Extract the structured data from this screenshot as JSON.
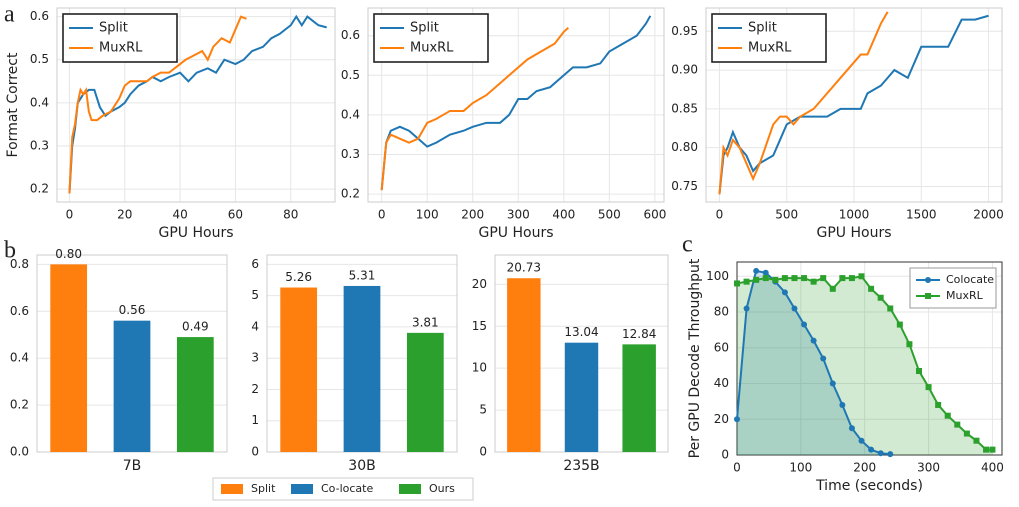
{
  "panel_labels": [
    "a",
    "b",
    "c"
  ],
  "legend": {
    "items": [
      {
        "name": "Split",
        "color": "#ff7f0e"
      },
      {
        "name": "Co-locate",
        "color": "#1f77b4"
      },
      {
        "name": "Ours",
        "color": "#2ca02c"
      }
    ]
  },
  "chart_data": [
    {
      "type": "line",
      "xlabel": "GPU Hours",
      "ylabel": "Format Correct",
      "xlim": [
        -4.5,
        96
      ],
      "ylim": [
        0.17,
        0.62
      ],
      "xticks": [
        0,
        20,
        40,
        60,
        80
      ],
      "yticks": [
        0.2,
        0.3,
        0.4,
        0.5,
        0.6
      ],
      "grid": true,
      "legend": "upper left",
      "series": [
        {
          "name": "Split",
          "color": "#1f77b4",
          "x": [
            0,
            1,
            2,
            3,
            5,
            7,
            9,
            11,
            13,
            15,
            18,
            20,
            22,
            25,
            28,
            30,
            33,
            36,
            40,
            43,
            46,
            50,
            53,
            56,
            60,
            63,
            66,
            70,
            73,
            76,
            80,
            82,
            84,
            86,
            88,
            90,
            93
          ],
          "values": [
            0.19,
            0.3,
            0.34,
            0.4,
            0.42,
            0.43,
            0.43,
            0.39,
            0.37,
            0.38,
            0.39,
            0.4,
            0.42,
            0.44,
            0.45,
            0.46,
            0.45,
            0.46,
            0.47,
            0.45,
            0.47,
            0.48,
            0.47,
            0.5,
            0.49,
            0.5,
            0.52,
            0.53,
            0.55,
            0.56,
            0.58,
            0.6,
            0.58,
            0.6,
            0.59,
            0.58,
            0.575
          ]
        },
        {
          "name": "MuxRL",
          "color": "#ff7f0e",
          "x": [
            0,
            1,
            2,
            3,
            4,
            5,
            6,
            7,
            8,
            10,
            12,
            15,
            18,
            20,
            22,
            25,
            28,
            30,
            33,
            36,
            40,
            42,
            45,
            48,
            50,
            52,
            55,
            58,
            60,
            62,
            64
          ],
          "values": [
            0.19,
            0.32,
            0.35,
            0.4,
            0.43,
            0.42,
            0.43,
            0.38,
            0.36,
            0.36,
            0.37,
            0.38,
            0.41,
            0.44,
            0.45,
            0.45,
            0.45,
            0.46,
            0.47,
            0.47,
            0.49,
            0.5,
            0.51,
            0.52,
            0.5,
            0.53,
            0.55,
            0.54,
            0.57,
            0.6,
            0.595
          ]
        }
      ]
    },
    {
      "type": "line",
      "xlabel": "GPU Hours",
      "xlim": [
        -30,
        620
      ],
      "ylim": [
        0.18,
        0.67
      ],
      "xticks": [
        0,
        100,
        200,
        300,
        400,
        500,
        600
      ],
      "yticks": [
        0.2,
        0.3,
        0.4,
        0.5,
        0.6
      ],
      "grid": true,
      "legend": "upper left",
      "series": [
        {
          "name": "Split",
          "color": "#1f77b4",
          "x": [
            0,
            10,
            20,
            40,
            60,
            80,
            100,
            120,
            150,
            180,
            200,
            230,
            260,
            280,
            300,
            320,
            340,
            370,
            400,
            420,
            450,
            480,
            500,
            530,
            560,
            580,
            590
          ],
          "values": [
            0.21,
            0.33,
            0.36,
            0.37,
            0.36,
            0.34,
            0.32,
            0.33,
            0.35,
            0.36,
            0.37,
            0.38,
            0.38,
            0.4,
            0.44,
            0.44,
            0.46,
            0.47,
            0.5,
            0.52,
            0.52,
            0.53,
            0.56,
            0.58,
            0.6,
            0.63,
            0.65
          ]
        },
        {
          "name": "MuxRL",
          "color": "#ff7f0e",
          "x": [
            0,
            10,
            20,
            40,
            60,
            80,
            100,
            120,
            150,
            180,
            200,
            230,
            260,
            280,
            300,
            320,
            350,
            380,
            400,
            410
          ],
          "values": [
            0.21,
            0.33,
            0.35,
            0.34,
            0.33,
            0.34,
            0.38,
            0.39,
            0.41,
            0.41,
            0.43,
            0.45,
            0.48,
            0.5,
            0.52,
            0.54,
            0.56,
            0.58,
            0.61,
            0.62
          ]
        }
      ]
    },
    {
      "type": "line",
      "xlabel": "GPU Hours",
      "xlim": [
        -100,
        2100
      ],
      "ylim": [
        0.73,
        0.98
      ],
      "xticks": [
        0,
        500,
        1000,
        1500,
        2000
      ],
      "yticks": [
        0.75,
        {
          "value": 0.8,
          "label": "0.80"
        },
        0.85,
        {
          "value": 0.9,
          "label": "0.90"
        },
        0.95
      ],
      "grid": true,
      "legend": "upper left",
      "series": [
        {
          "name": "Split",
          "color": "#1f77b4",
          "x": [
            0,
            30,
            60,
            100,
            150,
            200,
            250,
            300,
            400,
            500,
            600,
            700,
            800,
            900,
            1000,
            1050,
            1100,
            1200,
            1300,
            1400,
            1500,
            1600,
            1700,
            1800,
            1900,
            2000
          ],
          "values": [
            0.74,
            0.79,
            0.8,
            0.82,
            0.8,
            0.79,
            0.77,
            0.78,
            0.79,
            0.83,
            0.84,
            0.84,
            0.84,
            0.85,
            0.85,
            0.85,
            0.87,
            0.88,
            0.9,
            0.89,
            0.93,
            0.93,
            0.93,
            0.965,
            0.965,
            0.97
          ]
        },
        {
          "name": "MuxRL",
          "color": "#ff7f0e",
          "x": [
            0,
            30,
            60,
            100,
            150,
            200,
            250,
            300,
            400,
            450,
            500,
            550,
            600,
            700,
            800,
            900,
            1000,
            1050,
            1100,
            1150,
            1200,
            1250
          ],
          "values": [
            0.74,
            0.8,
            0.79,
            0.81,
            0.8,
            0.78,
            0.76,
            0.78,
            0.83,
            0.84,
            0.84,
            0.83,
            0.84,
            0.85,
            0.87,
            0.89,
            0.91,
            0.92,
            0.92,
            0.94,
            0.96,
            0.975
          ]
        }
      ]
    },
    {
      "type": "bar",
      "categories": [
        "7B"
      ],
      "ylim": [
        0,
        0.84
      ],
      "yticks": [
        {
          "value": 0,
          "label": "0.0"
        },
        0.2,
        0.4,
        0.6,
        0.8
      ],
      "grid": true,
      "series": [
        {
          "color": "#ff7f0e",
          "values": [
            0.8
          ],
          "value_labels": [
            "0.80"
          ]
        },
        {
          "color": "#1f77b4",
          "values": [
            0.56
          ],
          "value_labels": [
            "0.56"
          ]
        },
        {
          "color": "#2ca02c",
          "values": [
            0.49
          ],
          "value_labels": [
            "0.49"
          ]
        }
      ]
    },
    {
      "type": "bar",
      "categories": [
        "30B"
      ],
      "ylim": [
        0,
        6.3
      ],
      "yticks": [
        0,
        1,
        2,
        3,
        4,
        5,
        6
      ],
      "grid": true,
      "series": [
        {
          "color": "#ff7f0e",
          "values": [
            5.26
          ],
          "value_labels": [
            "5.26"
          ]
        },
        {
          "color": "#1f77b4",
          "values": [
            5.31
          ],
          "value_labels": [
            "5.31"
          ]
        },
        {
          "color": "#2ca02c",
          "values": [
            3.81
          ],
          "value_labels": [
            "3.81"
          ]
        }
      ]
    },
    {
      "type": "bar",
      "categories": [
        "235B"
      ],
      "ylim": [
        0,
        23.5
      ],
      "yticks": [
        0,
        5,
        10,
        15,
        20
      ],
      "grid": true,
      "series": [
        {
          "color": "#ff7f0e",
          "values": [
            20.73
          ],
          "value_labels": [
            "20.73"
          ]
        },
        {
          "color": "#1f77b4",
          "values": [
            13.04
          ],
          "value_labels": [
            "13.04"
          ]
        },
        {
          "color": "#2ca02c",
          "values": [
            12.84
          ],
          "value_labels": [
            "12.84"
          ]
        }
      ]
    },
    {
      "type": "line",
      "xlabel": "Time (seconds)",
      "ylabel": "Per GPU Decode Throughput",
      "xlim": [
        0,
        415
      ],
      "ylim": [
        0,
        108
      ],
      "xticks": [
        0,
        100,
        200,
        300,
        400
      ],
      "yticks": [
        0,
        20,
        40,
        60,
        80,
        100
      ],
      "grid": true,
      "fill": true,
      "legend": "upper right",
      "series": [
        {
          "name": "Colocate",
          "color": "#1f77b4",
          "marker": "circle",
          "x": [
            0,
            15,
            30,
            45,
            60,
            75,
            90,
            105,
            120,
            135,
            150,
            165,
            180,
            195,
            210,
            225,
            240
          ],
          "values": [
            20,
            82,
            103,
            102,
            97,
            91,
            82,
            73,
            64,
            54,
            40,
            28,
            15,
            8,
            3,
            1,
            0.5
          ]
        },
        {
          "name": "MuxRL",
          "color": "#2ca02c",
          "marker": "square",
          "x": [
            0,
            15,
            30,
            45,
            60,
            75,
            90,
            105,
            120,
            135,
            150,
            165,
            180,
            195,
            210,
            225,
            240,
            255,
            270,
            285,
            300,
            315,
            330,
            345,
            360,
            375,
            390,
            400
          ],
          "values": [
            96,
            97,
            98,
            99,
            98,
            99,
            99,
            99,
            97,
            99,
            93,
            99,
            99,
            100,
            93,
            88,
            82,
            73,
            62,
            47,
            38,
            28,
            22,
            17,
            12,
            8,
            3,
            3
          ]
        }
      ]
    }
  ]
}
